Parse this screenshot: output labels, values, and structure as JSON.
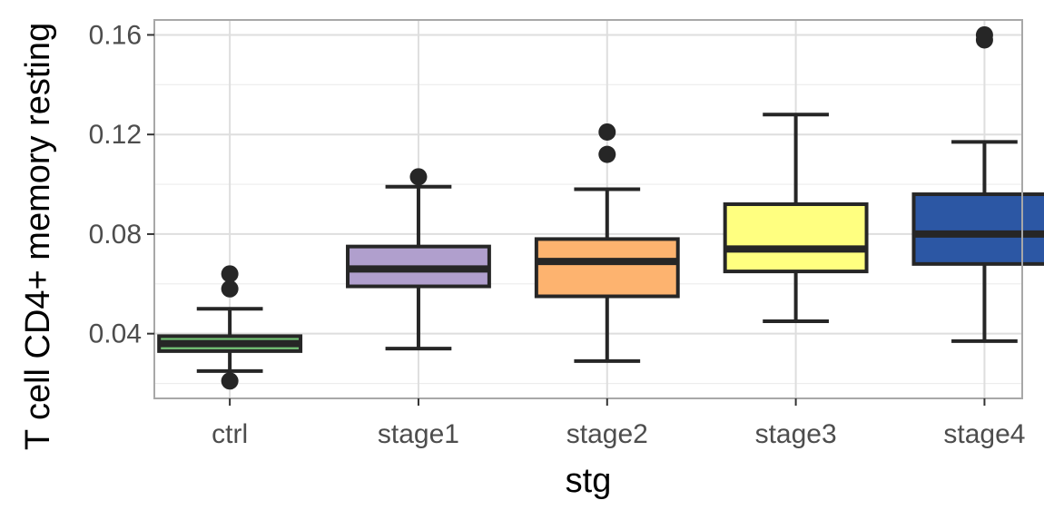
{
  "chart_data": {
    "type": "box",
    "xlabel": "stg",
    "ylabel": "T cell CD4+ memory resting",
    "ylim": [
      0.014,
      0.166
    ],
    "yticks": [
      0.04,
      0.08,
      0.12,
      0.16
    ],
    "ytick_labels": [
      "0.04",
      "0.08",
      "0.12",
      "0.16"
    ],
    "grid": true,
    "legend": "none",
    "categories": [
      "ctrl",
      "stage1",
      "stage2",
      "stage3",
      "stage4"
    ],
    "boxes": [
      {
        "category": "ctrl",
        "color": "#74c476",
        "whisker_low": 0.025,
        "q1": 0.033,
        "median": 0.036,
        "q3": 0.039,
        "whisker_high": 0.05,
        "outliers": [
          0.021,
          0.058,
          0.064
        ]
      },
      {
        "category": "stage1",
        "color": "#b09fcd",
        "whisker_low": 0.034,
        "q1": 0.059,
        "median": 0.066,
        "q3": 0.075,
        "whisker_high": 0.099,
        "outliers": [
          0.103
        ]
      },
      {
        "category": "stage2",
        "color": "#fdb36f",
        "whisker_low": 0.029,
        "q1": 0.055,
        "median": 0.069,
        "q3": 0.078,
        "whisker_high": 0.098,
        "outliers": [
          0.112,
          0.121
        ]
      },
      {
        "category": "stage3",
        "color": "#ffff80",
        "whisker_low": 0.045,
        "q1": 0.065,
        "median": 0.074,
        "q3": 0.092,
        "whisker_high": 0.128,
        "outliers": []
      },
      {
        "category": "stage4",
        "color": "#2c57a4",
        "whisker_low": 0.037,
        "q1": 0.068,
        "median": 0.08,
        "q3": 0.096,
        "whisker_high": 0.117,
        "outliers": [
          0.158,
          0.16
        ]
      }
    ]
  }
}
